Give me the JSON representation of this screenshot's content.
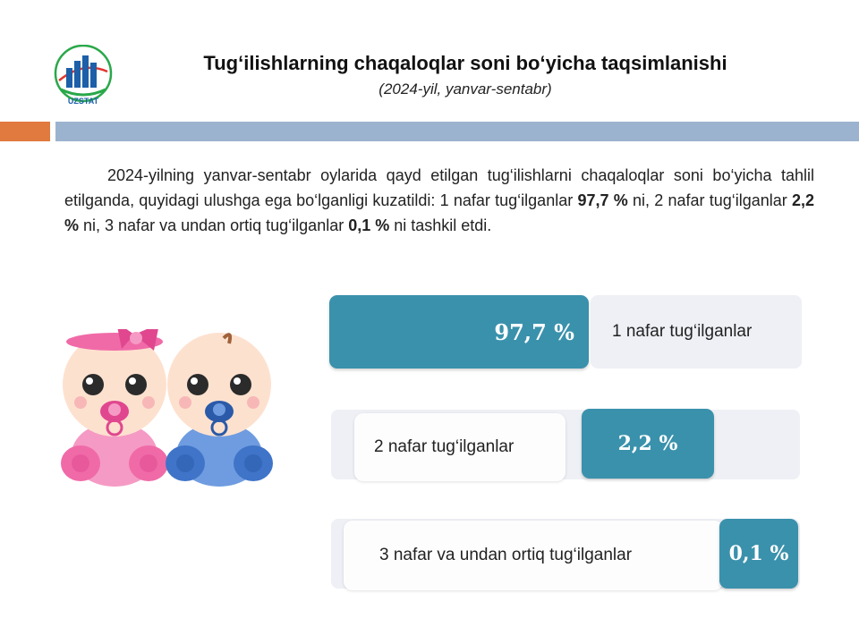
{
  "header": {
    "title": "Tug‘ilishlarning chaqaloqlar soni bo‘yicha taqsimlanishi",
    "subtitle": "(2024-yil, yanvar-sentabr)",
    "logo_text": "UZSTAT"
  },
  "intro": {
    "p1": "2024-yilning yanvar-sentabr oylarida qayd etilgan tug‘ilishlarni chaqaloqlar soni bo‘yicha tahlil etilganda, quyidagi ulushga ega bo‘lganligi kuzatildi: 1 nafar tug‘ilganlar ",
    "v1": "97,7 %",
    "p2": " ni, 2 nafar tug‘ilganlar ",
    "v2": "2,2 %",
    "p3": " ni, 3 nafar va undan ortiq tug‘ilganlar ",
    "v3": "0,1 %",
    "p4": " ni tashkil etdi."
  },
  "items": [
    {
      "label": "1 nafar tug‘ilganlar",
      "value": "97,7 %"
    },
    {
      "label": "2 nafar tug‘ilganlar",
      "value": "2,2 %"
    },
    {
      "label": "3 nafar va undan ortiq tug‘ilganlar",
      "value": "0,1 %"
    }
  ],
  "colors": {
    "accent": "#3a91ac",
    "orange": "#e07a3e",
    "band": "#9cb3cf",
    "girl": "#f06aa8",
    "boy": "#3f74c8"
  },
  "icons": [
    "uzstat-logo",
    "baby-girl-illustration",
    "baby-boy-illustration"
  ]
}
